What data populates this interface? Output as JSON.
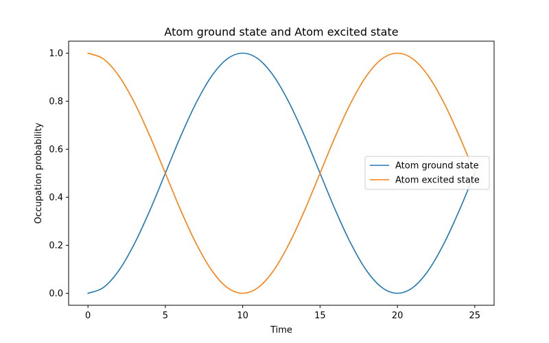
{
  "chart_data": {
    "type": "line",
    "title": "Atom ground state and Atom excited state",
    "xlabel": "Time",
    "ylabel": "Occupation probability",
    "xlim": [
      -1.25,
      26.25
    ],
    "ylim": [
      -0.05,
      1.05
    ],
    "xticks": [
      0,
      5,
      10,
      15,
      20,
      25
    ],
    "xtick_labels": [
      "0",
      "5",
      "10",
      "15",
      "20",
      "25"
    ],
    "yticks": [
      0.0,
      0.2,
      0.4,
      0.6,
      0.8,
      1.0
    ],
    "ytick_labels": [
      "0.0",
      "0.2",
      "0.4",
      "0.6",
      "0.8",
      "1.0"
    ],
    "grid": false,
    "legend_position": "center-right",
    "x": [
      0,
      1,
      2,
      3,
      4,
      5,
      6,
      7,
      8,
      9,
      10,
      11,
      12,
      13,
      14,
      15,
      16,
      17,
      18,
      19,
      20,
      21,
      22,
      23,
      24,
      25
    ],
    "series": [
      {
        "name": "Atom ground state",
        "color": "#1f77b4",
        "values": [
          0.0,
          0.024,
          0.095,
          0.206,
          0.345,
          0.5,
          0.655,
          0.794,
          0.905,
          0.976,
          1.0,
          0.976,
          0.905,
          0.794,
          0.655,
          0.5,
          0.345,
          0.206,
          0.095,
          0.024,
          0.0,
          0.024,
          0.095,
          0.206,
          0.345,
          0.5
        ]
      },
      {
        "name": "Atom excited state",
        "color": "#ff7f0e",
        "values": [
          1.0,
          0.976,
          0.905,
          0.794,
          0.655,
          0.5,
          0.345,
          0.206,
          0.095,
          0.024,
          0.0,
          0.024,
          0.095,
          0.206,
          0.345,
          0.5,
          0.655,
          0.794,
          0.905,
          0.976,
          1.0,
          0.976,
          0.905,
          0.794,
          0.655,
          0.5
        ]
      }
    ]
  }
}
